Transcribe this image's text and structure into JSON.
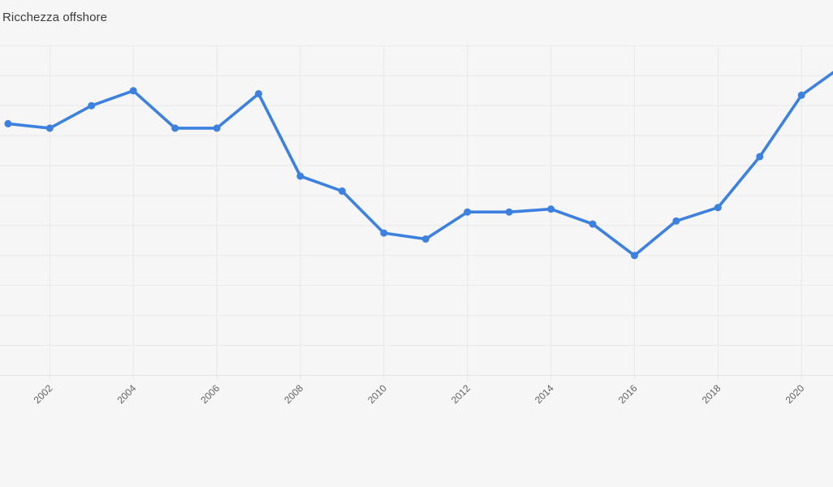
{
  "page": {
    "background_color": "#f6f6f6",
    "gridline_color": "#e8e8e8"
  },
  "header": {
    "title": "Ricchezza offshore"
  },
  "chart_data": {
    "type": "line",
    "title": "Ricchezza offshore",
    "series": [
      {
        "name": "Ricchezza offshore",
        "x": [
          2001,
          2002,
          2003,
          2004,
          2005,
          2006,
          2007,
          2008,
          2009,
          2010,
          2011,
          2012,
          2013,
          2014,
          2015,
          2016,
          2017,
          2018,
          2019,
          2020,
          2021
        ],
        "values": [
          8.4,
          8.25,
          9.0,
          9.5,
          8.25,
          8.25,
          9.4,
          6.65,
          6.15,
          4.75,
          4.55,
          5.45,
          5.45,
          5.55,
          5.05,
          4.0,
          5.15,
          5.6,
          7.3,
          9.35,
          10.35
        ],
        "color": "#3c80e0",
        "marker": "circle"
      }
    ],
    "x_tick_labels": [
      "2002",
      "2004",
      "2006",
      "2008",
      "2010",
      "2012",
      "2014",
      "2016",
      "2018",
      "2020"
    ],
    "xlabel": "",
    "ylabel": "",
    "ylim": [
      0,
      11
    ],
    "y_units_note": "y-axis labels not visible (cropped at left edge); values estimated in gridline units, 1 unit = one horizontal gridline interval",
    "grid": "on",
    "legend": "none",
    "notes": "line continues past right edge toward 2021 point (partially visible segment); first point (2001) sits at the cropped left edge"
  }
}
